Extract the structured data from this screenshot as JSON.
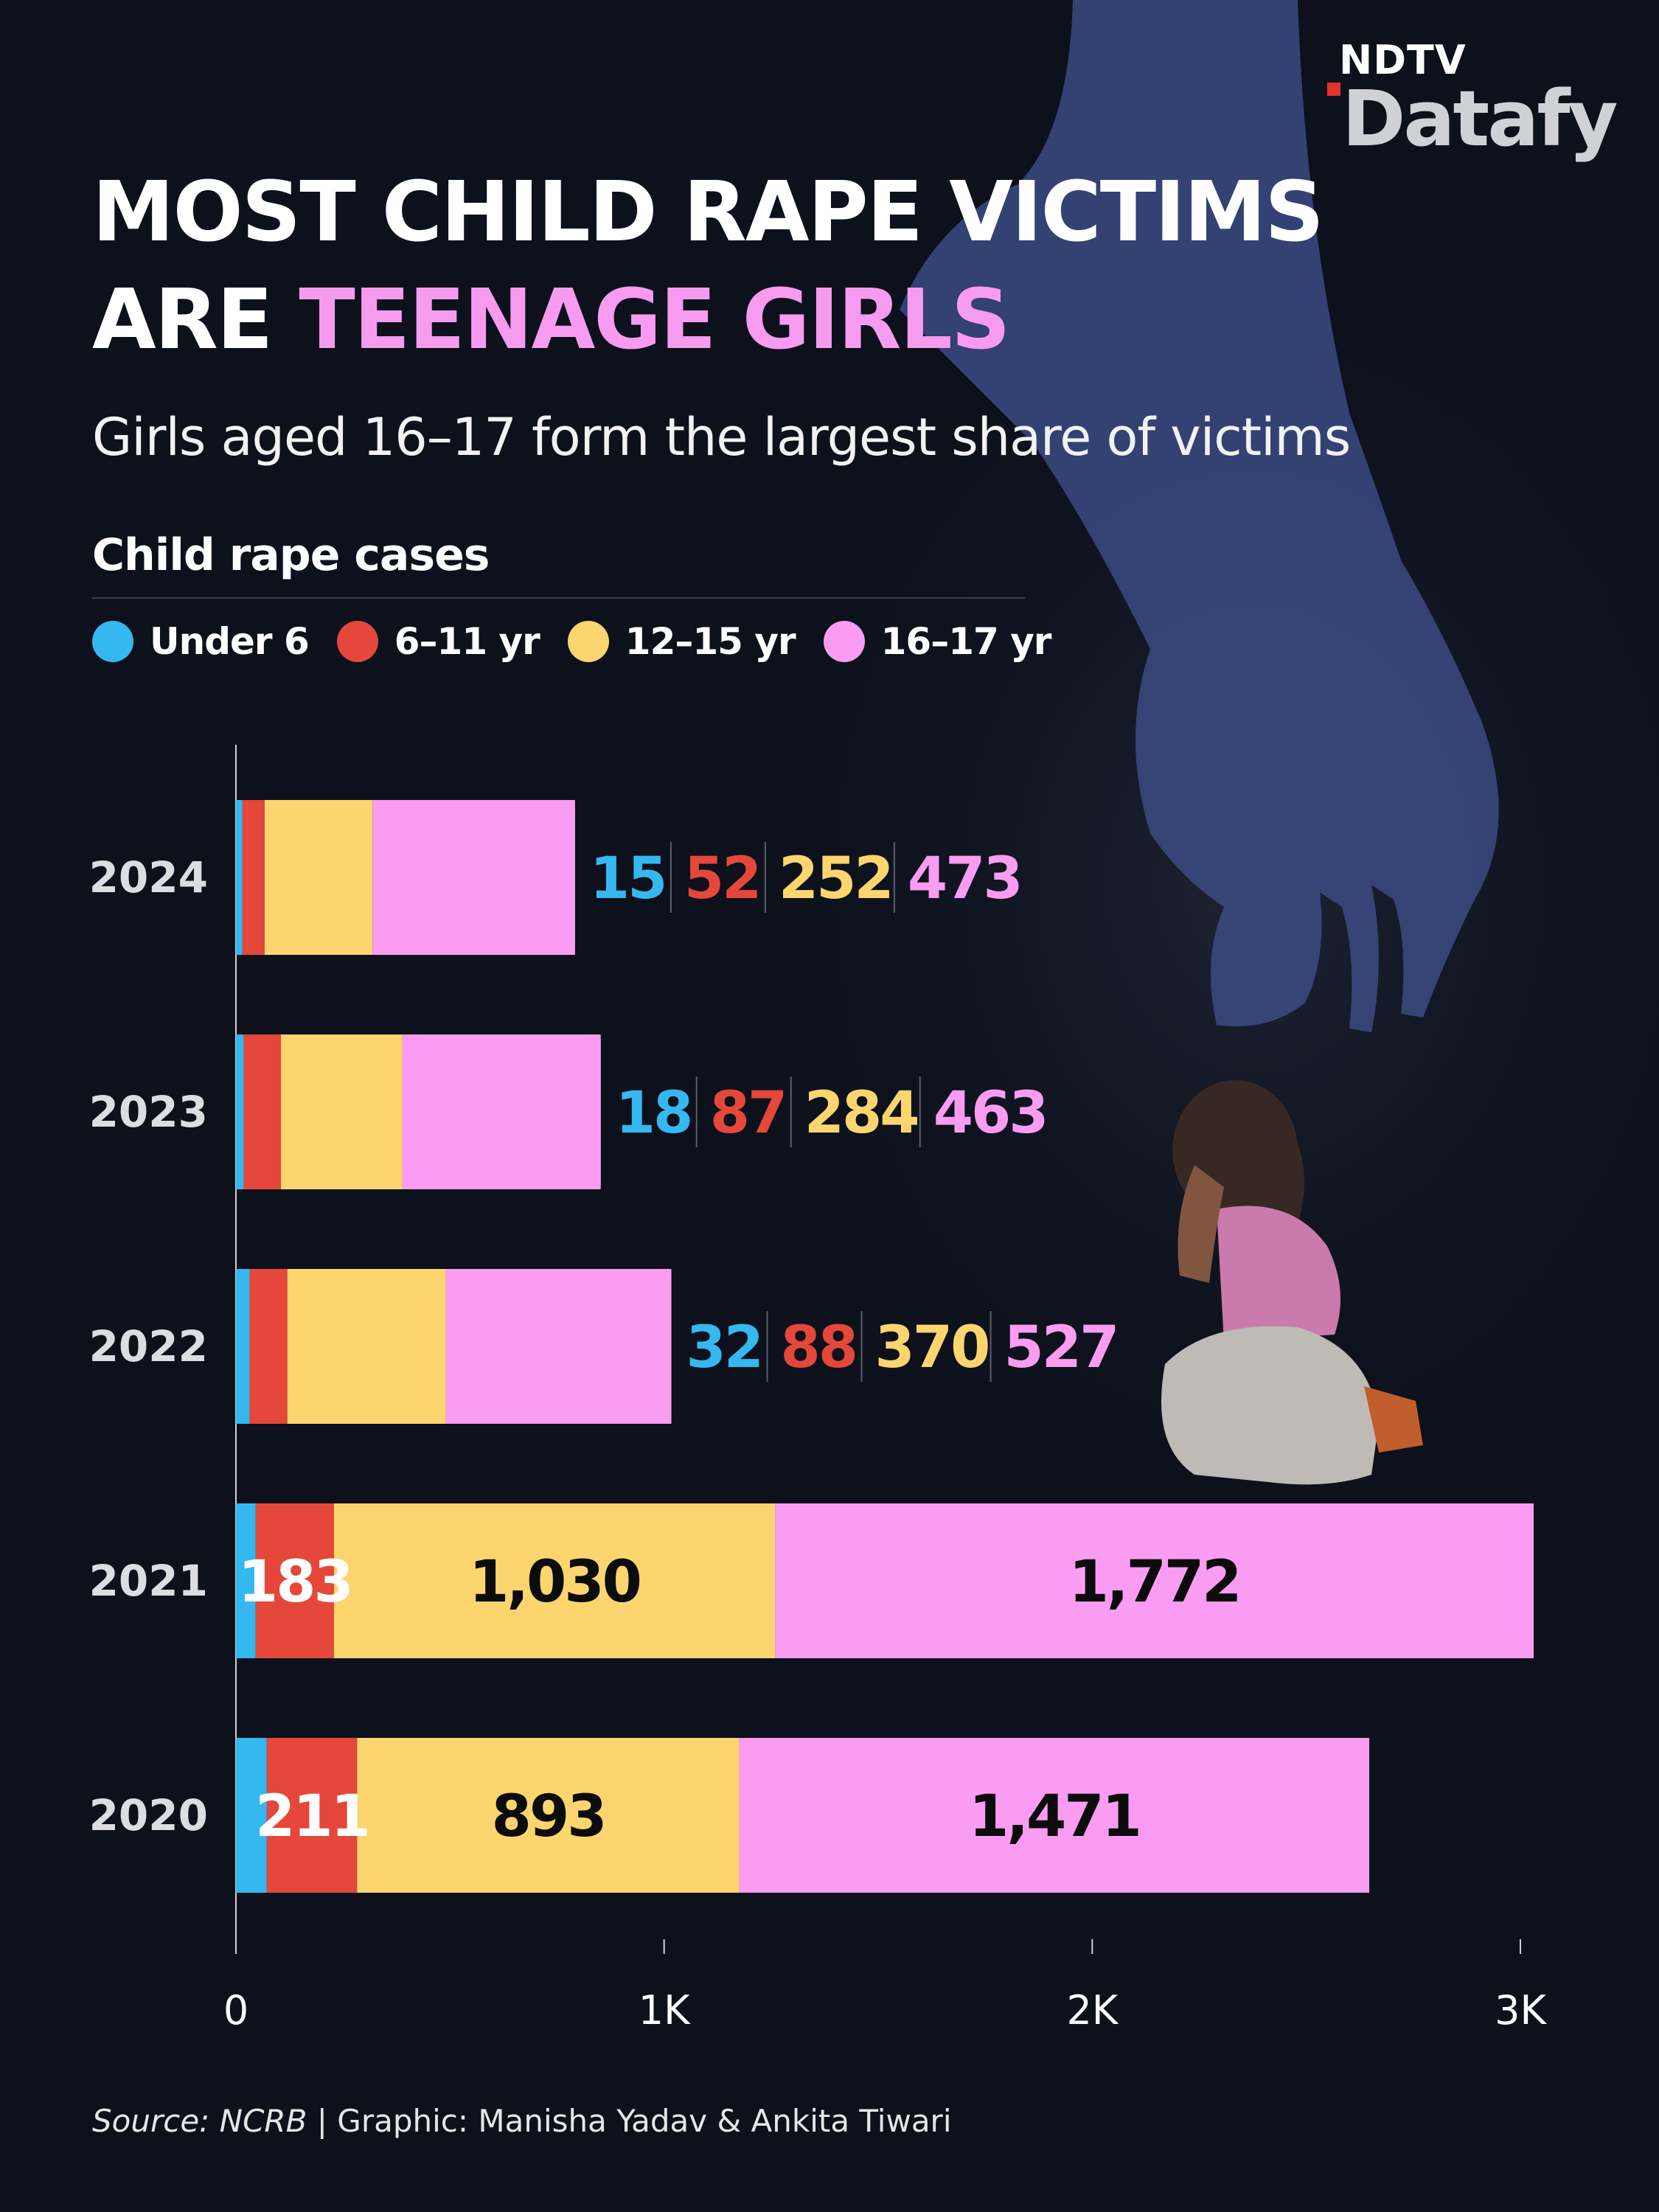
{
  "brand": {
    "top": "NDTV",
    "main": "Datafy"
  },
  "headline": {
    "line1": "MOST CHILD RAPE VICTIMS",
    "line2_prefix": "ARE ",
    "line2_highlight": "TEENAGE GIRLS"
  },
  "subtitle": "Girls aged 16–17 form the largest share of victims",
  "footer": {
    "source": "Source: NCRB",
    "separator": " | ",
    "credit": "Graphic: Manisha Yadav & Ankita Tiwari"
  },
  "colors": {
    "under6": "#35b8f0",
    "age6_11": "#e5473a",
    "age12_15": "#fdd56f",
    "age16_17": "#fa9cf2",
    "highlight": "#f79bf0",
    "background": "#0c111c"
  },
  "chart_data": {
    "type": "bar",
    "orientation": "horizontal",
    "stacked": true,
    "title": "Child rape cases",
    "categories": [
      "2024",
      "2023",
      "2022",
      "2021",
      "2020"
    ],
    "series": [
      {
        "name": "Under 6",
        "values": [
          15,
          18,
          32,
          46,
          72
        ]
      },
      {
        "name": "6–11 yr",
        "values": [
          52,
          87,
          88,
          183,
          211
        ]
      },
      {
        "name": "12–15 yr",
        "values": [
          252,
          284,
          370,
          1030,
          893
        ]
      },
      {
        "name": "16–17 yr",
        "values": [
          473,
          463,
          527,
          1772,
          1471
        ]
      }
    ],
    "data_labels": [
      [
        "15",
        "52",
        "252",
        "473"
      ],
      [
        "18",
        "87",
        "284",
        "463"
      ],
      [
        "32",
        "88",
        "370",
        "527"
      ],
      [
        "",
        "183",
        "1,030",
        "1,772"
      ],
      [
        "",
        "211",
        "893",
        "1,471"
      ]
    ],
    "x_ticks": [
      0,
      1000,
      2000,
      3000
    ],
    "x_tick_labels": [
      "0",
      "1K",
      "2K",
      "3K"
    ],
    "xlim": [
      0,
      3000
    ],
    "grid": false,
    "legend_position": "top-left"
  }
}
